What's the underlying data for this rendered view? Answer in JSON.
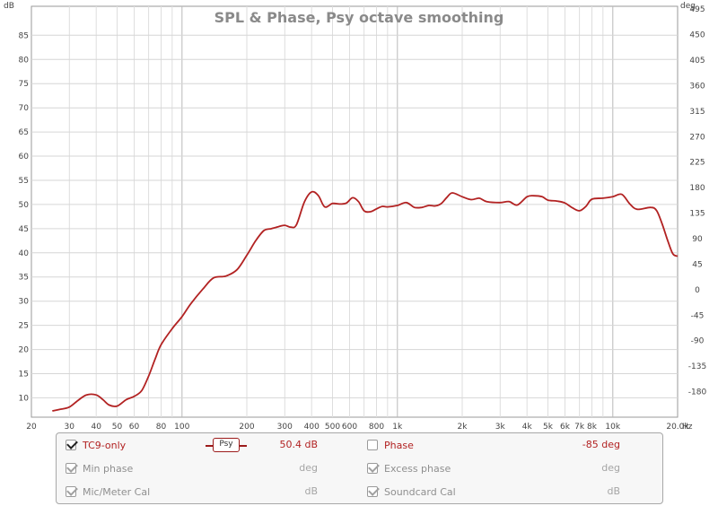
{
  "chart_data": {
    "type": "line",
    "title": "SPL & Phase, Psy octave smoothing",
    "x_scale": "log",
    "xlim": [
      20,
      20000
    ],
    "x_unit": "Hz",
    "ylim_left": [
      6,
      91
    ],
    "y_left_unit": "dB",
    "ylim_right": [
      -225,
      500
    ],
    "y_right_unit": "deg",
    "grid": true,
    "x_ticks": [
      {
        "value": 20,
        "label": "20"
      },
      {
        "value": 30,
        "label": "30"
      },
      {
        "value": 40,
        "label": "40"
      },
      {
        "value": 50,
        "label": "50"
      },
      {
        "value": 60,
        "label": "60"
      },
      {
        "value": 80,
        "label": "80"
      },
      {
        "value": 100,
        "label": "100"
      },
      {
        "value": 200,
        "label": "200"
      },
      {
        "value": 300,
        "label": "300"
      },
      {
        "value": 400,
        "label": "400"
      },
      {
        "value": 500,
        "label": "500"
      },
      {
        "value": 600,
        "label": "600"
      },
      {
        "value": 800,
        "label": "800"
      },
      {
        "value": 1000,
        "label": "1k"
      },
      {
        "value": 2000,
        "label": "2k"
      },
      {
        "value": 3000,
        "label": "3k"
      },
      {
        "value": 4000,
        "label": "4k"
      },
      {
        "value": 5000,
        "label": "5k"
      },
      {
        "value": 6000,
        "label": "6k"
      },
      {
        "value": 7000,
        "label": "7k"
      },
      {
        "value": 8000,
        "label": "8k"
      },
      {
        "value": 10000,
        "label": "10k"
      },
      {
        "value": 20000,
        "label": "20.0k"
      }
    ],
    "y_left_ticks": [
      10,
      15,
      20,
      25,
      30,
      35,
      40,
      45,
      50,
      55,
      60,
      65,
      70,
      75,
      80,
      85
    ],
    "y_right_ticks": [
      -180,
      -135,
      -90,
      -45,
      0,
      45,
      90,
      135,
      180,
      225,
      270,
      315,
      360,
      405,
      450,
      495
    ],
    "series": [
      {
        "name": "TC9-only",
        "color": "#b22222",
        "x": [
          25,
          27,
          30,
          33,
          36,
          40,
          43,
          46,
          50,
          55,
          60,
          65,
          70,
          75,
          80,
          90,
          100,
          110,
          125,
          140,
          160,
          180,
          200,
          220,
          240,
          260,
          280,
          300,
          320,
          340,
          370,
          400,
          430,
          460,
          500,
          540,
          580,
          620,
          660,
          700,
          750,
          800,
          850,
          900,
          1000,
          1100,
          1200,
          1300,
          1400,
          1500,
          1600,
          1700,
          1800,
          2000,
          2200,
          2400,
          2600,
          3000,
          3300,
          3600,
          4000,
          4300,
          4700,
          5000,
          5500,
          6000,
          6500,
          7000,
          7500,
          8000,
          9000,
          10000,
          11000,
          12000,
          13000,
          15000,
          16000,
          17000,
          18000,
          19000,
          20000
        ],
        "y": [
          7.3,
          7.6,
          8.1,
          9.5,
          10.6,
          10.6,
          9.6,
          8.5,
          8.3,
          9.6,
          10.3,
          11.5,
          14.5,
          18,
          21,
          24.3,
          26.8,
          29.5,
          32.5,
          34.8,
          35.2,
          36.5,
          39.5,
          42.5,
          44.6,
          45,
          45.4,
          45.7,
          45.3,
          45.8,
          50.5,
          52.6,
          51.8,
          49.5,
          50.2,
          50.1,
          50.3,
          51.4,
          50.6,
          48.7,
          48.5,
          49.1,
          49.6,
          49.5,
          49.8,
          50.4,
          49.4,
          49.4,
          49.8,
          49.7,
          50.2,
          51.5,
          52.4,
          51.6,
          51,
          51.3,
          50.6,
          50.4,
          50.6,
          49.9,
          51.6,
          51.8,
          51.6,
          50.9,
          50.7,
          50.3,
          49.3,
          48.7,
          49.6,
          51.1,
          51.3,
          51.6,
          52.1,
          50.1,
          49,
          49.4,
          48.7,
          45.8,
          42.5,
          39.8,
          39.3
        ]
      }
    ]
  },
  "legend": {
    "rows": [
      {
        "label": "TC9-only",
        "checked": true,
        "enabled": true,
        "value": "50.4 dB"
      },
      {
        "label": "Min phase",
        "checked": true,
        "enabled": false,
        "value": "deg"
      },
      {
        "label": "Mic/Meter Cal",
        "checked": true,
        "enabled": false,
        "value": "dB"
      }
    ],
    "rows_right": [
      {
        "label": "Phase",
        "checked": false,
        "enabled": true,
        "value": "-85 deg"
      },
      {
        "label": "Excess phase",
        "checked": true,
        "enabled": false,
        "value": "deg"
      },
      {
        "label": "Soundcard Cal",
        "checked": true,
        "enabled": false,
        "value": "dB"
      }
    ],
    "smoothing_badge": "Psy"
  }
}
